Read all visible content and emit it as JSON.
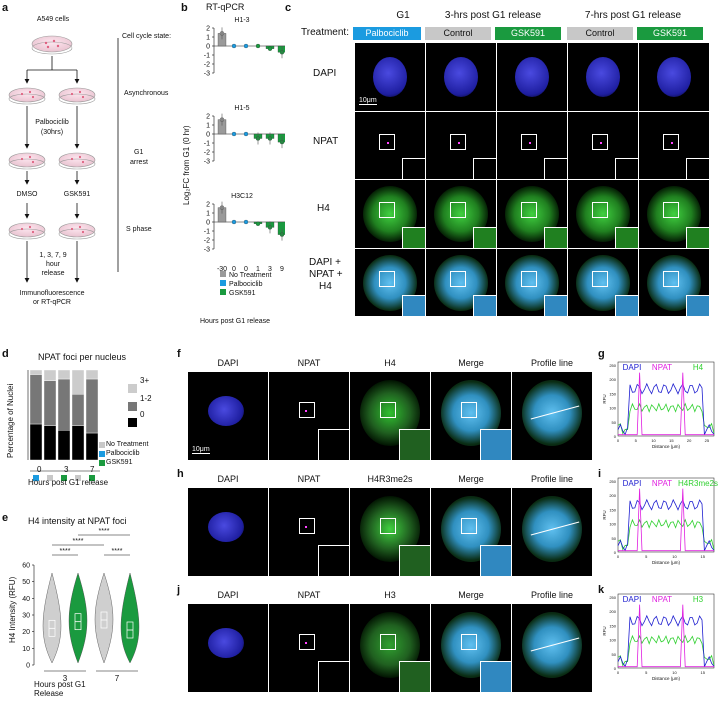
{
  "panel_letters": {
    "a": "a",
    "b": "b",
    "c": "c",
    "d": "d",
    "e": "e",
    "f": "f",
    "g": "g",
    "h": "h",
    "i": "i",
    "j": "j",
    "k": "k"
  },
  "colors": {
    "palbo": "#1b9be0",
    "gsk": "#1a9a3f",
    "control": "#c8c8c8",
    "notreat": "#9a9a9a",
    "dapi": "#2020d0",
    "npat": "#e020e0",
    "h4": "#30d030"
  },
  "panel_a": {
    "cells": "A549 cells",
    "state_title": "Cell cycle state:",
    "async": "Asynchronous",
    "palbo": "Palbociclib",
    "palbo_time": "(30hrs)",
    "g1_arrest_1": "G1",
    "g1_arrest_2": "arrest",
    "dmso": "DMSO",
    "gsk": "GSK591",
    "sphase": "S phase",
    "release_1": "1, 3, 7, 9",
    "release_2": "hour",
    "release_3": "release",
    "readout_1": "Immunofluorescence",
    "readout_2": "or RT-qPCR"
  },
  "panel_b": {
    "title": "RT-qPCR",
    "ylabel": "Log₂FC from G1 (0 hr)",
    "xlabel": "Hours post G1 release",
    "legend": [
      "No Treatment",
      "Palbociclib",
      "GSK591"
    ],
    "xticks": [
      "-30",
      "0",
      "0",
      "1",
      "3",
      "9"
    ]
  },
  "chart_data": [
    {
      "type": "bar",
      "title": "H1-3",
      "ylabel": "Log₂FC from G1 (0 hr)",
      "xlabel": "Hours post G1 release",
      "categories": [
        "-30",
        "0",
        "0",
        "1",
        "3",
        "9"
      ],
      "ylim": [
        -3,
        2
      ],
      "series": [
        {
          "name": "No Treatment",
          "values": [
            1.4,
            null,
            null,
            null,
            null,
            null
          ]
        },
        {
          "name": "Palbociclib",
          "values": [
            null,
            0,
            0,
            null,
            null,
            null
          ]
        },
        {
          "name": "GSK591",
          "values": [
            null,
            null,
            null,
            0,
            -0.3,
            -0.7
          ]
        }
      ]
    },
    {
      "type": "bar",
      "title": "H1-5",
      "categories": [
        "-30",
        "0",
        "0",
        "1",
        "3",
        "9"
      ],
      "ylim": [
        -3,
        2
      ],
      "series": [
        {
          "name": "No Treatment",
          "values": [
            1.6,
            null,
            null,
            null,
            null,
            null
          ]
        },
        {
          "name": "Palbociclib",
          "values": [
            null,
            0,
            0,
            null,
            null,
            null
          ]
        },
        {
          "name": "GSK591",
          "values": [
            null,
            null,
            null,
            -0.5,
            -0.5,
            -0.9
          ]
        }
      ]
    },
    {
      "type": "bar",
      "title": "H3C12",
      "categories": [
        "-30",
        "0",
        "0",
        "1",
        "3",
        "9"
      ],
      "ylim": [
        -3,
        2
      ],
      "series": [
        {
          "name": "No Treatment",
          "values": [
            1.6,
            null,
            null,
            null,
            null,
            null
          ]
        },
        {
          "name": "Palbociclib",
          "values": [
            null,
            0,
            0,
            null,
            null,
            null
          ]
        },
        {
          "name": "GSK591",
          "values": [
            null,
            null,
            null,
            -0.2,
            -0.6,
            -1.4
          ]
        }
      ]
    },
    {
      "type": "bar",
      "title": "NPAT foci per nucleus",
      "ylabel": "Percentage of Nuclei",
      "xlabel": "Hours post G1 release",
      "categories": [
        "0",
        "3",
        "3",
        "7",
        "7"
      ],
      "stacked": true,
      "ylim": [
        0,
        100
      ],
      "series": [
        {
          "name": "0",
          "values": [
            40,
            38,
            33,
            38,
            30
          ]
        },
        {
          "name": "1-2",
          "values": [
            55,
            50,
            57,
            35,
            60
          ]
        },
        {
          "name": "3+",
          "values": [
            5,
            12,
            10,
            27,
            10
          ]
        }
      ],
      "treatments": [
        "Palbociclib",
        "No Treatment",
        "GSK591",
        "No Treatment",
        "GSK591"
      ]
    },
    {
      "type": "violin",
      "title": "H4 intensity at NPAT foci",
      "ylabel": "H4 Intensity (RFU)",
      "xlabel": "Hours post G1 Release",
      "categories": [
        "3",
        "3",
        "7",
        "7"
      ],
      "ylim": [
        0,
        60
      ],
      "yticks": [
        0,
        10,
        20,
        30,
        40,
        50,
        60
      ],
      "medians": [
        22,
        26,
        27,
        21
      ],
      "treatments": [
        "No Treatment",
        "GSK591",
        "No Treatment",
        "GSK591"
      ],
      "significance": "****"
    },
    {
      "type": "line",
      "title": "profile g",
      "xlabel": "Distance (μm)",
      "ylabel": "RFU",
      "series": [
        {
          "name": "DAPI"
        },
        {
          "name": "NPAT"
        },
        {
          "name": "H4"
        }
      ]
    },
    {
      "type": "line",
      "title": "profile i",
      "xlabel": "Distance (μm)",
      "ylabel": "RFU",
      "series": [
        {
          "name": "DAPI"
        },
        {
          "name": "NPAT"
        },
        {
          "name": "H4R3me2s"
        }
      ]
    },
    {
      "type": "line",
      "title": "profile k",
      "xlabel": "Distance (μm)",
      "ylabel": "RFU",
      "series": [
        {
          "name": "DAPI"
        },
        {
          "name": "NPAT"
        },
        {
          "name": "H3"
        }
      ]
    }
  ],
  "panel_c": {
    "g1": "G1",
    "h3": "3-hrs post G1 release",
    "h7": "7-hrs post G1 release",
    "treatment": "Treatment:",
    "palbo": "Palbociclib",
    "control": "Control",
    "gsk": "GSK591",
    "rows": [
      "DAPI",
      "NPAT",
      "H4"
    ],
    "merge_1": "DAPI +",
    "merge_2": "NPAT +",
    "merge_3": "H4",
    "scale": "10μm"
  },
  "panel_d": {
    "title": "NPAT foci per nucleus",
    "ylabel": "Percentage of Nuclei",
    "legend": [
      "3+",
      "1-2",
      "0"
    ],
    "tlegend": [
      "No Treatment",
      "Palbociclib",
      "GSK591"
    ],
    "xticks": [
      "0",
      "3",
      "7"
    ],
    "xlabel": "Hours post G1 release"
  },
  "panel_e": {
    "title": "H4 intensity at NPAT foci",
    "ylabel": "H4 Intensity (RFU)",
    "yticks": [
      "0",
      "10",
      "20",
      "30",
      "40",
      "50",
      "60"
    ],
    "xticks": [
      "3",
      "7"
    ],
    "xlabel": "Hours post G1 Release",
    "sig": "****"
  },
  "panel_fhj": {
    "dapi": "DAPI",
    "npat": "NPAT",
    "h4": "H4",
    "h4r": "H4R3me2s",
    "h3": "H3",
    "merge": "Merge",
    "profile": "Profile line",
    "scale": "10μm"
  },
  "profiles": {
    "dapi": "DAPI",
    "npat": "NPAT",
    "h4": "H4",
    "h4r": "H4R3me2s",
    "h3": "H3",
    "xlabel": "Distance (μm)",
    "ylabel": "RFU",
    "yt": [
      "0",
      "50",
      "100",
      "150",
      "200",
      "250"
    ],
    "xt_g": [
      "0",
      "5",
      "10",
      "15",
      "20",
      "25"
    ],
    "xt_i": [
      "0",
      "5",
      "10",
      "15"
    ],
    "xt_k": [
      "0",
      "5",
      "10",
      "15"
    ]
  }
}
